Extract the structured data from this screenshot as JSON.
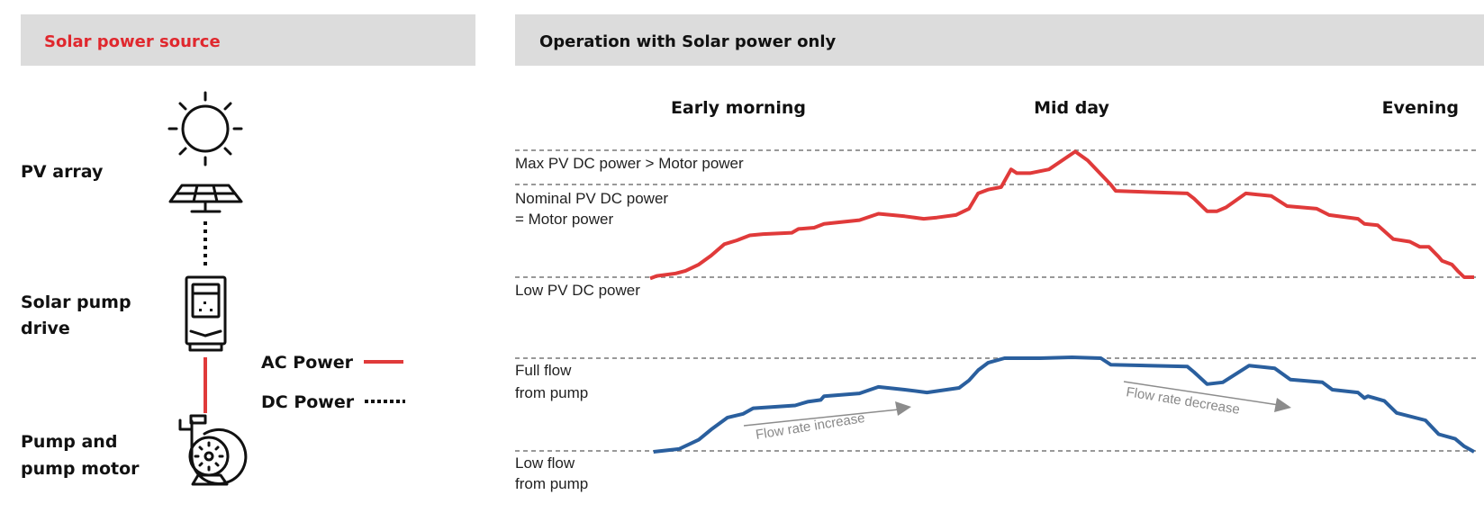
{
  "left_panel": {
    "title": "Solar power source",
    "labels": [
      "PV array",
      "Solar pump",
      "drive",
      "Pump and",
      "pump motor"
    ],
    "legend": {
      "ac": "AC Power",
      "dc": "DC Power"
    },
    "icons": [
      "sun-icon",
      "solar-panel-icon",
      "drive-icon",
      "pump-icon"
    ]
  },
  "right_panel": {
    "title": "Operation with Solar power only",
    "times": [
      "Early morning",
      "Mid day",
      "Evening"
    ],
    "power_refs": {
      "max": "Max PV DC power > Motor power",
      "nominal_1": "Nominal PV DC power",
      "nominal_2": "= Motor power",
      "low": "Low PV DC power"
    },
    "flow_refs": {
      "full_1": "Full flow",
      "full_2": "from pump",
      "low_1": "Low flow",
      "low_2": "from pump"
    },
    "annotations": {
      "increase": "Flow rate increase",
      "decrease": "Flow rate decrease"
    }
  },
  "colors": {
    "title_red": "#e0282e",
    "header_bg": "#dcdcdc",
    "power": "#e03a3a",
    "flow": "#2a5f9e",
    "ref_line": "#999999",
    "arrow": "#8c8c8c"
  },
  "chart_data": [
    {
      "type": "line",
      "series": [
        {
          "name": "PV DC power",
          "points": [
            [
              0,
              -0.01
            ],
            [
              0.8,
              0.01
            ],
            [
              3.1,
              0.03
            ],
            [
              4.3,
              0.05
            ],
            [
              5.9,
              0.1
            ],
            [
              7.4,
              0.17
            ],
            [
              9,
              0.26
            ],
            [
              10.5,
              0.29
            ],
            [
              12.1,
              0.33
            ],
            [
              13.7,
              0.34
            ],
            [
              17.2,
              0.35
            ],
            [
              18,
              0.38
            ],
            [
              19.9,
              0.39
            ],
            [
              21.1,
              0.42
            ],
            [
              25.4,
              0.45
            ],
            [
              27.7,
              0.5
            ],
            [
              30.9,
              0.48
            ],
            [
              33.2,
              0.46
            ],
            [
              34.8,
              0.47
            ],
            [
              37.1,
              0.49
            ],
            [
              38.7,
              0.54
            ],
            [
              39.8,
              0.66
            ],
            [
              41,
              0.69
            ],
            [
              42.6,
              0.71
            ],
            [
              43.8,
              0.85
            ],
            [
              44.5,
              0.82
            ],
            [
              46.1,
              0.82
            ],
            [
              48.4,
              0.85
            ],
            [
              51.6,
              0.99
            ],
            [
              53.1,
              0.92
            ],
            [
              55.9,
              0.73
            ],
            [
              56.5,
              0.68
            ],
            [
              65.2,
              0.66
            ],
            [
              66,
              0.62
            ],
            [
              67.6,
              0.52
            ],
            [
              68.8,
              0.52
            ],
            [
              69.9,
              0.55
            ],
            [
              72.3,
              0.66
            ],
            [
              75.4,
              0.64
            ],
            [
              77.3,
              0.56
            ],
            [
              80.9,
              0.54
            ],
            [
              82.4,
              0.49
            ],
            [
              85.9,
              0.46
            ],
            [
              86.7,
              0.42
            ],
            [
              88.3,
              0.41
            ],
            [
              90.2,
              0.3
            ],
            [
              92.2,
              0.28
            ],
            [
              93.4,
              0.24
            ],
            [
              94.5,
              0.24
            ],
            [
              95.7,
              0.16
            ],
            [
              96.1,
              0.13
            ],
            [
              97.3,
              0.1
            ],
            [
              98,
              0.05
            ],
            [
              98.8,
              0
            ],
            [
              100,
              0
            ]
          ]
        }
      ],
      "reference_levels": {
        "low": 0,
        "nominal": 0.73,
        "max": 1
      }
    },
    {
      "type": "line",
      "series": [
        {
          "name": "Pump flow",
          "points": [
            [
              0.4,
              -0.01
            ],
            [
              3.5,
              0.02
            ],
            [
              5.9,
              0.12
            ],
            [
              7.4,
              0.23
            ],
            [
              9.4,
              0.36
            ],
            [
              11.3,
              0.4
            ],
            [
              12.5,
              0.46
            ],
            [
              17.6,
              0.49
            ],
            [
              19.1,
              0.53
            ],
            [
              20.7,
              0.55
            ],
            [
              21.1,
              0.59
            ],
            [
              25.4,
              0.62
            ],
            [
              27.7,
              0.69
            ],
            [
              30.9,
              0.66
            ],
            [
              33.6,
              0.63
            ],
            [
              37.5,
              0.68
            ],
            [
              38.7,
              0.76
            ],
            [
              39.8,
              0.87
            ],
            [
              41,
              0.95
            ],
            [
              43,
              1
            ],
            [
              47.3,
              1
            ],
            [
              51.2,
              1.01
            ],
            [
              54.7,
              1
            ],
            [
              55.9,
              0.93
            ],
            [
              65.2,
              0.91
            ],
            [
              66,
              0.85
            ],
            [
              67.6,
              0.72
            ],
            [
              69.5,
              0.74
            ],
            [
              72.7,
              0.92
            ],
            [
              75.8,
              0.89
            ],
            [
              77.7,
              0.77
            ],
            [
              81.6,
              0.74
            ],
            [
              82.8,
              0.66
            ],
            [
              85.9,
              0.63
            ],
            [
              86.7,
              0.57
            ],
            [
              87.1,
              0.59
            ],
            [
              89.1,
              0.54
            ],
            [
              90.6,
              0.41
            ],
            [
              94.1,
              0.33
            ],
            [
              95.7,
              0.18
            ],
            [
              97.7,
              0.13
            ],
            [
              98.8,
              0.05
            ],
            [
              100,
              -0.01
            ]
          ]
        }
      ],
      "reference_levels": {
        "low": 0,
        "full": 1
      }
    }
  ]
}
